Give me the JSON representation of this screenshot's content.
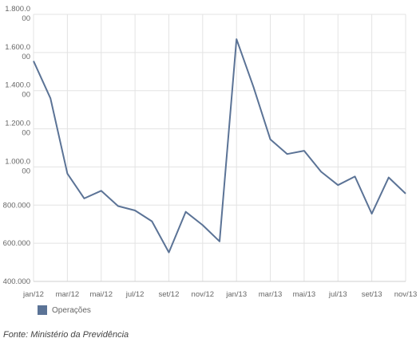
{
  "chart_data": {
    "type": "line",
    "title": "",
    "xlabel": "",
    "ylabel": "",
    "ylim": [
      400000,
      1800000
    ],
    "y_ticks": [
      400000,
      600000,
      800000,
      1000000,
      1200000,
      1400000,
      1600000,
      1800000
    ],
    "y_tick_labels": [
      "400.000",
      "600.000",
      "800.000",
      "1.000.0\n00",
      "1.200.0\n00",
      "1.400.0\n00",
      "1.600.0\n00",
      "1.800.0\n00"
    ],
    "x_tick_labels": [
      "jan/12",
      "mar/12",
      "mai/12",
      "jul/12",
      "set/12",
      "nov/12",
      "jan/13",
      "mar/13",
      "mai/13",
      "jul/13",
      "set/13",
      "nov/13"
    ],
    "x": [
      "jan/12",
      "fev/12",
      "mar/12",
      "abr/12",
      "mai/12",
      "jun/12",
      "jul/12",
      "ago/12",
      "set/12",
      "out/12",
      "nov/12",
      "dez/12",
      "jan/13",
      "fev/13",
      "mar/13",
      "abr/13",
      "mai/13",
      "jun/13",
      "jul/13",
      "ago/13",
      "set/13",
      "out/13",
      "nov/13"
    ],
    "series": [
      {
        "name": "Operações",
        "color": "#5b7396",
        "values": [
          1555000,
          1360000,
          965000,
          835000,
          875000,
          795000,
          772000,
          715000,
          552000,
          765000,
          695000,
          610000,
          1670000,
          1420000,
          1145000,
          1068000,
          1085000,
          975000,
          905000,
          950000,
          755000,
          945000,
          860000
        ]
      }
    ],
    "grid": true,
    "legend_position": "bottom-left"
  },
  "source_text": "Fonte: Ministério da Previdência"
}
